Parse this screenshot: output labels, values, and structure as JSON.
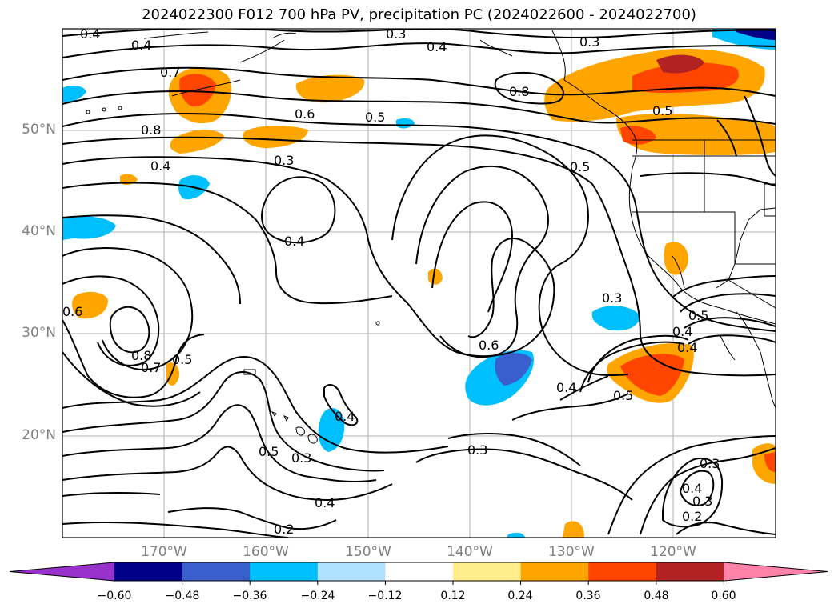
{
  "title": "2024022300 F012 700 hPa PV, precipitation PC (2024022600 - 2024022700)",
  "latitude_labels": [
    "50°N",
    "40°N",
    "30°N",
    "20°N"
  ],
  "longitude_labels": [
    "170°W",
    "160°W",
    "150°W",
    "140°W",
    "130°W",
    "120°W"
  ],
  "contour_labels": [
    "0.4",
    "0.4",
    "0.3",
    "0.4",
    "0.3",
    "0.7",
    "0.8",
    "0.6",
    "0.5",
    "0.8",
    "0.5",
    "0.4",
    "0.3",
    "0.5",
    "0.4",
    "0.6",
    "0.8",
    "0.7",
    "0.5",
    "0.6",
    "0.3",
    "0.4",
    "0.5",
    "0.4",
    "0.5",
    "0.4",
    "0.4",
    "0.3",
    "0.5",
    "0.3",
    "0.4",
    "0.2",
    "0.3",
    "0.4",
    "0.3",
    "0.2"
  ],
  "colorbar": {
    "ticks": [
      "−0.60",
      "−0.48",
      "−0.36",
      "−0.24",
      "−0.12",
      "0.12",
      "0.24",
      "0.36",
      "0.48",
      "0.60"
    ],
    "colors": [
      "#9932cc",
      "#00008b",
      "#3a5fcd",
      "#00bfff",
      "#b0e2ff",
      "#ffffff",
      "#ffec8b",
      "#ffa500",
      "#ff4500",
      "#b22222",
      "#ff82ab"
    ]
  }
}
